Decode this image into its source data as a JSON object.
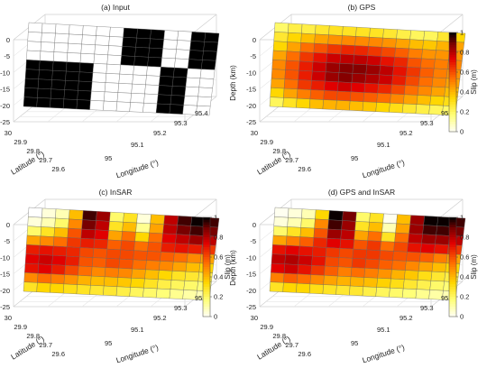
{
  "chart_data": [
    {
      "type": "heatmap",
      "panel": "a",
      "title": "(a) Input",
      "xlabel": "Longitude (°)",
      "ylabel_lat": "Latitude (°)",
      "zlabel": "Depth (km)",
      "longitude_ticks": [
        "95",
        "95.1",
        "95.2",
        "95.3",
        "95.4"
      ],
      "latitude_ticks": [
        "29.6",
        "29.7",
        "29.8",
        "29.9",
        "30"
      ],
      "depth_ticks": [
        "0",
        "-5",
        "-10",
        "-15",
        "-20",
        "-25"
      ],
      "grid_rows": 9,
      "grid_cols": 14,
      "note": "binary checkerboard: 1 = black (slip), 0 = white",
      "values": [
        [
          0,
          0,
          0,
          0,
          0,
          0,
          0,
          1,
          1,
          1,
          0,
          0,
          1,
          1
        ],
        [
          0,
          0,
          0,
          0,
          0,
          0,
          0,
          1,
          1,
          1,
          0,
          0,
          1,
          1
        ],
        [
          0,
          0,
          0,
          0,
          0,
          0,
          0,
          1,
          1,
          1,
          0,
          0,
          1,
          1
        ],
        [
          0,
          0,
          0,
          0,
          0,
          0,
          0,
          1,
          1,
          1,
          0,
          0,
          1,
          1
        ],
        [
          1,
          1,
          1,
          1,
          1,
          0,
          0,
          0,
          0,
          0,
          1,
          1,
          0,
          0
        ],
        [
          1,
          1,
          1,
          1,
          1,
          0,
          0,
          0,
          0,
          0,
          1,
          1,
          0,
          0
        ],
        [
          1,
          1,
          1,
          1,
          1,
          0,
          0,
          0,
          0,
          0,
          1,
          1,
          0,
          0
        ],
        [
          1,
          1,
          1,
          1,
          1,
          0,
          0,
          0,
          0,
          0,
          1,
          1,
          0,
          0
        ],
        [
          1,
          1,
          1,
          1,
          1,
          0,
          0,
          0,
          0,
          0,
          1,
          1,
          0,
          0
        ]
      ]
    },
    {
      "type": "heatmap",
      "panel": "b",
      "title": "(b) GPS",
      "xlabel": "Longitude (°)",
      "ylabel_lat": "Latitude (°)",
      "zlabel": "Depth (km)",
      "colorbar_label": "Slip (m)",
      "colorbar_ticks": [
        "0",
        "0.2",
        "0.4",
        "0.6",
        "0.8",
        "1"
      ],
      "longitude_ticks": [
        "95",
        "95.1",
        "95.2",
        "95.3",
        "95.4"
      ],
      "latitude_ticks": [
        "29.6",
        "29.7",
        "29.8",
        "29.9",
        "30"
      ],
      "depth_ticks": [
        "0",
        "-5",
        "-10",
        "-15",
        "-20",
        "-25"
      ],
      "values": [
        [
          0.2,
          0.25,
          0.25,
          0.28,
          0.3,
          0.3,
          0.3,
          0.3,
          0.28,
          0.25,
          0.22,
          0.22,
          0.28,
          0.35
        ],
        [
          0.28,
          0.35,
          0.4,
          0.45,
          0.48,
          0.5,
          0.5,
          0.5,
          0.48,
          0.45,
          0.4,
          0.38,
          0.42,
          0.45
        ],
        [
          0.35,
          0.45,
          0.55,
          0.6,
          0.65,
          0.68,
          0.68,
          0.65,
          0.62,
          0.58,
          0.52,
          0.48,
          0.48,
          0.48
        ],
        [
          0.45,
          0.55,
          0.65,
          0.72,
          0.78,
          0.8,
          0.8,
          0.78,
          0.72,
          0.68,
          0.6,
          0.55,
          0.52,
          0.5
        ],
        [
          0.5,
          0.6,
          0.7,
          0.78,
          0.85,
          0.88,
          0.88,
          0.85,
          0.8,
          0.72,
          0.65,
          0.58,
          0.52,
          0.48
        ],
        [
          0.5,
          0.6,
          0.7,
          0.78,
          0.85,
          0.88,
          0.85,
          0.82,
          0.78,
          0.7,
          0.62,
          0.55,
          0.5,
          0.45
        ],
        [
          0.45,
          0.55,
          0.65,
          0.7,
          0.75,
          0.78,
          0.75,
          0.72,
          0.68,
          0.62,
          0.55,
          0.5,
          0.45,
          0.4
        ],
        [
          0.35,
          0.45,
          0.52,
          0.58,
          0.62,
          0.62,
          0.6,
          0.58,
          0.55,
          0.5,
          0.45,
          0.4,
          0.35,
          0.32
        ],
        [
          0.22,
          0.3,
          0.35,
          0.4,
          0.42,
          0.42,
          0.4,
          0.38,
          0.35,
          0.32,
          0.28,
          0.25,
          0.22,
          0.2
        ]
      ]
    },
    {
      "type": "heatmap",
      "panel": "c",
      "title": "(c) InSAR",
      "xlabel": "Longitude (°)",
      "ylabel_lat": "Latitude (°)",
      "zlabel": "Depth (km)",
      "colorbar_label": "Slip (m)",
      "colorbar_ticks": [
        "0",
        "0.2",
        "0.4",
        "0.6",
        "0.8",
        "1"
      ],
      "longitude_ticks": [
        "95",
        "95.1",
        "95.2",
        "95.3",
        "95.4"
      ],
      "latitude_ticks": [
        "29.6",
        "29.7",
        "29.8",
        "29.9",
        "30"
      ],
      "depth_ticks": [
        "0",
        "-5",
        "-10",
        "-15",
        "-20",
        "-25"
      ],
      "values": [
        [
          0.0,
          0.05,
          0.1,
          0.4,
          0.95,
          0.85,
          0.2,
          0.3,
          0.05,
          0.4,
          0.8,
          0.95,
          1.0,
          0.95
        ],
        [
          0.05,
          0.1,
          0.2,
          0.5,
          0.9,
          0.8,
          0.3,
          0.4,
          0.15,
          0.45,
          0.8,
          0.9,
          0.95,
          0.9
        ],
        [
          0.2,
          0.3,
          0.4,
          0.6,
          0.8,
          0.75,
          0.45,
          0.55,
          0.35,
          0.55,
          0.75,
          0.8,
          0.85,
          0.8
        ],
        [
          0.45,
          0.5,
          0.55,
          0.65,
          0.7,
          0.68,
          0.58,
          0.62,
          0.55,
          0.6,
          0.7,
          0.72,
          0.7,
          0.65
        ],
        [
          0.7,
          0.72,
          0.7,
          0.68,
          0.62,
          0.6,
          0.62,
          0.62,
          0.6,
          0.6,
          0.58,
          0.55,
          0.5,
          0.45
        ],
        [
          0.75,
          0.78,
          0.75,
          0.7,
          0.6,
          0.58,
          0.62,
          0.6,
          0.55,
          0.52,
          0.5,
          0.45,
          0.4,
          0.35
        ],
        [
          0.72,
          0.75,
          0.7,
          0.62,
          0.55,
          0.5,
          0.52,
          0.5,
          0.45,
          0.4,
          0.35,
          0.3,
          0.28,
          0.25
        ],
        [
          0.5,
          0.55,
          0.52,
          0.48,
          0.42,
          0.4,
          0.4,
          0.38,
          0.35,
          0.3,
          0.25,
          0.22,
          0.2,
          0.18
        ],
        [
          0.3,
          0.35,
          0.35,
          0.32,
          0.3,
          0.28,
          0.28,
          0.25,
          0.22,
          0.2,
          0.18,
          0.15,
          0.12,
          0.1
        ]
      ]
    },
    {
      "type": "heatmap",
      "panel": "d",
      "title": "(d) GPS and InSAR",
      "xlabel": "Longitude (°)",
      "ylabel_lat": "Latitude (°)",
      "zlabel": "Depth (km)",
      "colorbar_label": "Slip (m)",
      "colorbar_ticks": [
        "0",
        "0.2",
        "0.4",
        "0.6",
        "0.8",
        "1"
      ],
      "longitude_ticks": [
        "95",
        "95.1",
        "95.2",
        "95.3",
        "95.4"
      ],
      "latitude_ticks": [
        "29.6",
        "29.7",
        "29.8",
        "29.9",
        "30"
      ],
      "depth_ticks": [
        "0",
        "-5",
        "-10",
        "-15",
        "-20",
        "-25"
      ],
      "values": [
        [
          0.02,
          0.05,
          0.1,
          0.35,
          1.0,
          0.9,
          0.2,
          0.3,
          0.02,
          0.4,
          0.85,
          1.0,
          1.0,
          0.95
        ],
        [
          0.05,
          0.1,
          0.2,
          0.5,
          0.95,
          0.85,
          0.3,
          0.4,
          0.1,
          0.45,
          0.85,
          0.95,
          0.95,
          0.9
        ],
        [
          0.2,
          0.3,
          0.4,
          0.6,
          0.85,
          0.8,
          0.45,
          0.55,
          0.3,
          0.55,
          0.8,
          0.85,
          0.85,
          0.8
        ],
        [
          0.45,
          0.52,
          0.58,
          0.68,
          0.75,
          0.72,
          0.6,
          0.65,
          0.55,
          0.62,
          0.72,
          0.75,
          0.72,
          0.65
        ],
        [
          0.72,
          0.75,
          0.72,
          0.7,
          0.65,
          0.62,
          0.65,
          0.65,
          0.62,
          0.6,
          0.6,
          0.58,
          0.52,
          0.45
        ],
        [
          0.8,
          0.82,
          0.78,
          0.72,
          0.62,
          0.6,
          0.65,
          0.62,
          0.58,
          0.55,
          0.5,
          0.45,
          0.4,
          0.35
        ],
        [
          0.75,
          0.78,
          0.72,
          0.65,
          0.58,
          0.52,
          0.55,
          0.52,
          0.48,
          0.42,
          0.38,
          0.32,
          0.28,
          0.25
        ],
        [
          0.52,
          0.58,
          0.55,
          0.5,
          0.45,
          0.42,
          0.42,
          0.4,
          0.36,
          0.32,
          0.28,
          0.24,
          0.2,
          0.18
        ],
        [
          0.3,
          0.35,
          0.35,
          0.32,
          0.3,
          0.28,
          0.28,
          0.25,
          0.22,
          0.2,
          0.18,
          0.15,
          0.12,
          0.1
        ]
      ]
    }
  ]
}
